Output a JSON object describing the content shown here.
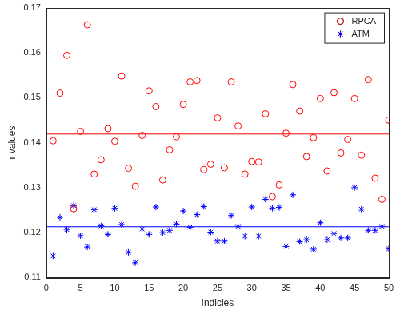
{
  "chart_data": {
    "type": "scatter",
    "x_label": "Indicies",
    "y_label": "r values",
    "x": [
      1,
      2,
      3,
      4,
      5,
      6,
      7,
      8,
      9,
      10,
      11,
      12,
      13,
      14,
      15,
      16,
      17,
      18,
      19,
      20,
      21,
      22,
      23,
      24,
      25,
      26,
      27,
      28,
      29,
      30,
      31,
      32,
      33,
      34,
      35,
      36,
      37,
      38,
      39,
      40,
      41,
      42,
      43,
      44,
      45,
      46,
      47,
      48,
      49,
      50
    ],
    "series": [
      {
        "name": "RPCA",
        "color": "#ff0000",
        "marker": "circle",
        "mean": 0.1419,
        "values": [
          0.1404,
          0.151,
          0.1594,
          0.1253,
          0.1425,
          0.1662,
          0.133,
          0.1362,
          0.1431,
          0.1403,
          0.1548,
          0.1343,
          0.1303,
          0.1416,
          0.1515,
          0.148,
          0.1317,
          0.1384,
          0.1413,
          0.1485,
          0.1535,
          0.1538,
          0.134,
          0.1352,
          0.1455,
          0.1344,
          0.1535,
          0.1437,
          0.133,
          0.1358,
          0.1357,
          0.1464,
          0.128,
          0.1306,
          0.1421,
          0.1529,
          0.147,
          0.1369,
          0.1411,
          0.1498,
          0.1337,
          0.1511,
          0.1377,
          0.1407,
          0.1498,
          0.1372,
          0.154,
          0.1321,
          0.1274,
          0.145
        ]
      },
      {
        "name": "ATM",
        "color": "#0000ff",
        "marker": "star",
        "mean": 0.1213,
        "values": [
          0.1148,
          0.1234,
          0.1207,
          0.126,
          0.1193,
          0.1168,
          0.1251,
          0.1215,
          0.1196,
          0.1254,
          0.1218,
          0.1156,
          0.1133,
          0.1208,
          0.1196,
          0.1257,
          0.12,
          0.1205,
          0.1219,
          0.1248,
          0.1212,
          0.124,
          0.1258,
          0.1201,
          0.1181,
          0.1181,
          0.1238,
          0.1214,
          0.1192,
          0.1257,
          0.1192,
          0.1274,
          0.1254,
          0.1256,
          0.1169,
          0.1284,
          0.118,
          0.1184,
          0.1163,
          0.1222,
          0.1184,
          0.1198,
          0.1188,
          0.1188,
          0.13,
          0.1252,
          0.1205,
          0.1205,
          0.1214,
          0.1164
        ]
      }
    ],
    "xlim": [
      0,
      50
    ],
    "xticks": [
      0,
      5,
      10,
      15,
      20,
      25,
      30,
      35,
      40,
      45,
      50
    ],
    "ylim": [
      0.11,
      0.17
    ],
    "yticks": [
      0.11,
      0.12,
      0.13,
      0.14,
      0.15,
      0.16,
      0.17
    ],
    "grid": false,
    "legend": "upper right"
  }
}
